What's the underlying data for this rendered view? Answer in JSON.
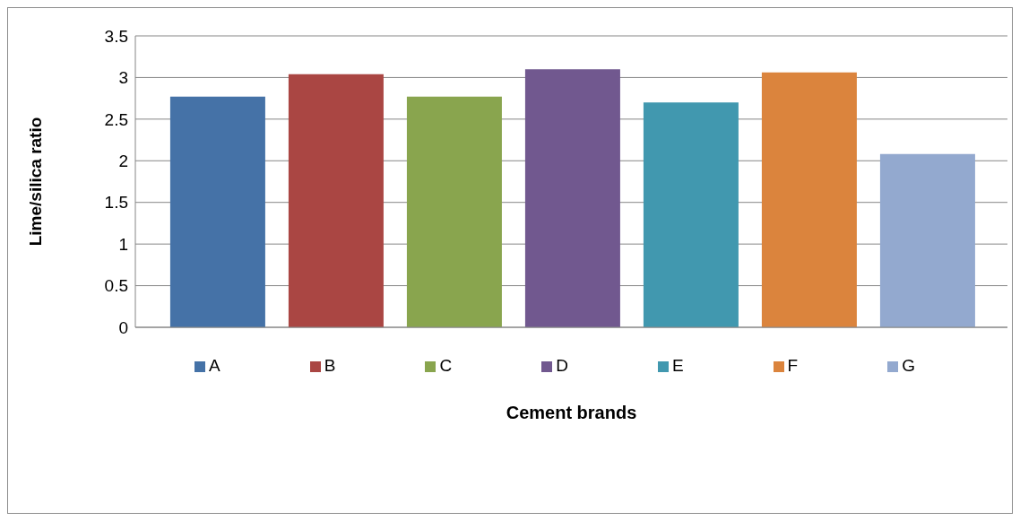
{
  "chart_data": {
    "type": "bar",
    "xlabel": "Cement brands",
    "ylabel": "Lime/silica ratio",
    "categories": [
      null
    ],
    "series": [
      {
        "name": "A",
        "color": "#4572a7",
        "values": [
          2.77
        ]
      },
      {
        "name": "B",
        "color": "#aa4643",
        "values": [
          3.04
        ]
      },
      {
        "name": "C",
        "color": "#89a54e",
        "values": [
          2.77
        ]
      },
      {
        "name": "D",
        "color": "#71588f",
        "values": [
          3.1
        ]
      },
      {
        "name": "E",
        "color": "#4198af",
        "values": [
          2.7
        ]
      },
      {
        "name": "F",
        "color": "#db843d",
        "values": [
          3.06
        ]
      },
      {
        "name": "G",
        "color": "#93a9cf",
        "values": [
          2.08
        ]
      }
    ],
    "ylim": [
      0,
      3.5
    ],
    "yticks": [
      0,
      0.5,
      1,
      1.5,
      2,
      2.5,
      3,
      3.5
    ],
    "grid": "y",
    "legend": "bottom",
    "tick_labels": "y"
  }
}
